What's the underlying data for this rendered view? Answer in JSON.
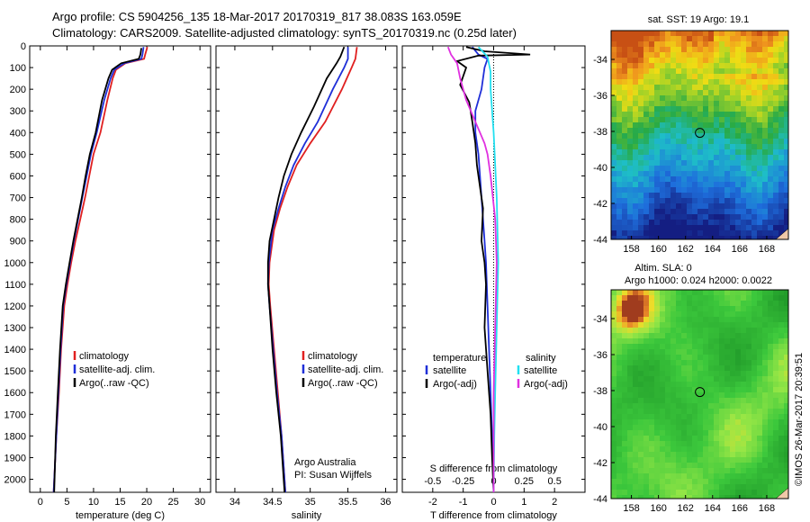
{
  "header": {
    "line1": "Argo profile: CS 5904256_135 18-Mar-2017 20170319_817 38.083S 163.059E",
    "line2": "Climatology: CARS2009. Satellite-adjusted climatology: synTS_20170319.nc (0.25d later)"
  },
  "side_text": "©IMOS 26-Mar-2017 20:39:51",
  "argo_credit": {
    "line1": "Argo Australia",
    "line2": "PI: Susan Wijffels"
  },
  "colors": {
    "climatology": "#e02020",
    "satellite": "#1f2fd8",
    "argo": "#000000",
    "sal_sat": "#22e0f0",
    "sal_argo": "#e030e0"
  },
  "chart_data": [
    {
      "type": "line",
      "id": "temperature",
      "xlabel": "temperature (deg C)",
      "xlim": [
        -2,
        32
      ],
      "xticks": [
        "0",
        "5",
        "10",
        "15",
        "20",
        "25",
        "30"
      ],
      "xtick_values": [
        0,
        5,
        10,
        15,
        20,
        25,
        30
      ],
      "ylim": [
        0,
        2060
      ],
      "yticks": [
        "0",
        "100",
        "200",
        "300",
        "400",
        "500",
        "600",
        "700",
        "800",
        "900",
        "1000",
        "1100",
        "1200",
        "1300",
        "1400",
        "1500",
        "1600",
        "1700",
        "1800",
        "1900",
        "2000"
      ],
      "ytick_values": [
        0,
        100,
        200,
        300,
        400,
        500,
        600,
        700,
        800,
        900,
        1000,
        1100,
        1200,
        1300,
        1400,
        1500,
        1600,
        1700,
        1800,
        1900,
        2000
      ],
      "legend": [
        "climatology",
        "satellite-adj. clim.",
        "Argo(..raw -QC)"
      ],
      "series": [
        {
          "name": "climatology",
          "color": "#e02020",
          "points": [
            [
              20.1,
              5
            ],
            [
              19.7,
              40
            ],
            [
              19.5,
              60
            ],
            [
              16,
              80
            ],
            [
              14.2,
              110
            ],
            [
              13.6,
              150
            ],
            [
              12.6,
              250
            ],
            [
              11.3,
              400
            ],
            [
              10,
              500
            ],
            [
              9.2,
              600
            ],
            [
              8.4,
              700
            ],
            [
              7.5,
              800
            ],
            [
              6.6,
              900
            ],
            [
              5.8,
              1000
            ],
            [
              5.1,
              1100
            ],
            [
              4.5,
              1200
            ],
            [
              3.9,
              1400
            ],
            [
              3.5,
              1600
            ],
            [
              3,
              1800
            ],
            [
              2.5,
              2060
            ]
          ]
        },
        {
          "name": "satellite-adj. clim.",
          "color": "#1f2fd8",
          "points": [
            [
              19.4,
              5
            ],
            [
              19.2,
              40
            ],
            [
              19,
              60
            ],
            [
              15.8,
              80
            ],
            [
              13.9,
              110
            ],
            [
              13.2,
              150
            ],
            [
              12,
              250
            ],
            [
              10.6,
              400
            ],
            [
              9.5,
              500
            ],
            [
              8.7,
              600
            ],
            [
              7.9,
              700
            ],
            [
              7.1,
              800
            ],
            [
              6.3,
              900
            ],
            [
              5.6,
              1000
            ],
            [
              4.9,
              1100
            ],
            [
              4.3,
              1200
            ],
            [
              3.8,
              1400
            ],
            [
              3.4,
              1600
            ],
            [
              3,
              1800
            ],
            [
              2.5,
              2060
            ]
          ]
        },
        {
          "name": "Argo(..raw -QC)",
          "color": "#000000",
          "points": [
            [
              19,
              10
            ],
            [
              18.8,
              40
            ],
            [
              18.5,
              60
            ],
            [
              15.2,
              80
            ],
            [
              13.5,
              110
            ],
            [
              12.8,
              150
            ],
            [
              11.6,
              250
            ],
            [
              10.4,
              400
            ],
            [
              9.3,
              500
            ],
            [
              8.5,
              600
            ],
            [
              7.8,
              700
            ],
            [
              7,
              800
            ],
            [
              6.2,
              900
            ],
            [
              5.5,
              1000
            ],
            [
              4.8,
              1100
            ],
            [
              4.2,
              1200
            ],
            [
              3.7,
              1400
            ],
            [
              3.3,
              1600
            ],
            [
              2.9,
              1800
            ],
            [
              2.6,
              2060
            ]
          ]
        }
      ]
    },
    {
      "type": "line",
      "id": "salinity",
      "xlabel": "salinity",
      "xlim": [
        33.75,
        36.15
      ],
      "xticks": [
        "34",
        "34.5",
        "35",
        "35.5",
        "36"
      ],
      "xtick_values": [
        34,
        34.5,
        35,
        35.5,
        36
      ],
      "ylim": [
        0,
        2060
      ],
      "legend": [
        "climatology",
        "satellite-adj. clim.",
        "Argo(..raw -QC)"
      ],
      "series": [
        {
          "name": "climatology",
          "color": "#e02020",
          "points": [
            [
              35.62,
              5
            ],
            [
              35.6,
              60
            ],
            [
              35.55,
              100
            ],
            [
              35.42,
              200
            ],
            [
              35.2,
              350
            ],
            [
              35,
              450
            ],
            [
              34.82,
              550
            ],
            [
              34.7,
              650
            ],
            [
              34.6,
              750
            ],
            [
              34.52,
              850
            ],
            [
              34.46,
              1000
            ],
            [
              34.45,
              1100
            ],
            [
              34.47,
              1200
            ],
            [
              34.52,
              1400
            ],
            [
              34.57,
              1600
            ],
            [
              34.62,
              1800
            ],
            [
              34.67,
              2060
            ]
          ]
        },
        {
          "name": "satellite-adj. clim.",
          "color": "#1f2fd8",
          "points": [
            [
              35.5,
              5
            ],
            [
              35.5,
              60
            ],
            [
              35.45,
              100
            ],
            [
              35.3,
              200
            ],
            [
              35.1,
              350
            ],
            [
              34.93,
              450
            ],
            [
              34.78,
              550
            ],
            [
              34.67,
              650
            ],
            [
              34.58,
              750
            ],
            [
              34.5,
              850
            ],
            [
              34.45,
              1000
            ],
            [
              34.44,
              1100
            ],
            [
              34.46,
              1200
            ],
            [
              34.51,
              1400
            ],
            [
              34.56,
              1600
            ],
            [
              34.62,
              1800
            ],
            [
              34.67,
              2060
            ]
          ]
        },
        {
          "name": "Argo(..raw -QC)",
          "color": "#000000",
          "points": [
            [
              35.45,
              5
            ],
            [
              35.4,
              50
            ],
            [
              35.35,
              80
            ],
            [
              35.22,
              150
            ],
            [
              35.05,
              280
            ],
            [
              34.88,
              400
            ],
            [
              34.75,
              500
            ],
            [
              34.65,
              600
            ],
            [
              34.58,
              700
            ],
            [
              34.52,
              800
            ],
            [
              34.46,
              900
            ],
            [
              34.44,
              1000
            ],
            [
              34.44,
              1100
            ],
            [
              34.46,
              1200
            ],
            [
              34.5,
              1400
            ],
            [
              34.55,
              1600
            ],
            [
              34.61,
              1800
            ],
            [
              34.66,
              2060
            ]
          ]
        }
      ]
    },
    {
      "type": "line",
      "id": "difference",
      "xlabel": "T difference from climatology",
      "xlim": [
        -3,
        3
      ],
      "xticks": [
        "-2",
        "-1",
        "0",
        "1",
        "2"
      ],
      "xtick_values": [
        -2,
        -1,
        0,
        1,
        2
      ],
      "top_label": "S difference from climatology",
      "top_ticks": [
        "-0.5",
        "-0.25",
        "0",
        "0.25",
        "0.5"
      ],
      "top_tick_values": [
        -0.5,
        -0.25,
        0,
        0.25,
        0.5
      ],
      "ylim": [
        0,
        2060
      ],
      "legend_left_title": "temperature",
      "legend_right_title": "salinity",
      "legend_left": [
        "satellite",
        "Argo(-adj)"
      ],
      "legend_right": [
        "satellite",
        "Argo(-adj)"
      ],
      "series": [
        {
          "name": "T satellite",
          "color": "#1f2fd8",
          "points": [
            [
              -0.7,
              5
            ],
            [
              -0.5,
              40
            ],
            [
              -0.2,
              60
            ],
            [
              -0.3,
              100
            ],
            [
              -0.4,
              200
            ],
            [
              -0.6,
              300
            ],
            [
              -0.6,
              400
            ],
            [
              -0.5,
              500
            ],
            [
              -0.4,
              700
            ],
            [
              -0.3,
              900
            ],
            [
              -0.25,
              1000
            ],
            [
              -0.2,
              1200
            ],
            [
              -0.15,
              1400
            ],
            [
              -0.1,
              1600
            ],
            [
              -0.05,
              1800
            ],
            [
              0,
              2060
            ]
          ]
        },
        {
          "name": "T Argo(-adj)",
          "color": "#000000",
          "points": [
            [
              -0.9,
              5
            ],
            [
              -0.3,
              25
            ],
            [
              1.2,
              40
            ],
            [
              -0.5,
              45
            ],
            [
              -1.2,
              70
            ],
            [
              -0.9,
              100
            ],
            [
              -1.1,
              180
            ],
            [
              -0.8,
              260
            ],
            [
              -0.7,
              350
            ],
            [
              -0.6,
              450
            ],
            [
              -0.55,
              550
            ],
            [
              -0.45,
              650
            ],
            [
              -0.35,
              750
            ],
            [
              -0.4,
              900
            ],
            [
              -0.3,
              1000
            ],
            [
              -0.25,
              1100
            ],
            [
              -0.3,
              1300
            ],
            [
              -0.2,
              1500
            ],
            [
              -0.1,
              1700
            ],
            [
              -0.05,
              1900
            ],
            [
              0,
              2060
            ]
          ]
        },
        {
          "name": "S satellite",
          "color": "#22e0f0",
          "points": [
            [
              -0.5,
              5
            ],
            [
              -0.2,
              50
            ],
            [
              -0.1,
              120
            ],
            [
              -0.1,
              200
            ],
            [
              0,
              400
            ],
            [
              0.1,
              700
            ],
            [
              0.15,
              1000
            ],
            [
              0.1,
              1300
            ],
            [
              0.05,
              1600
            ],
            [
              0.02,
              1800
            ],
            [
              0,
              2060
            ]
          ]
        },
        {
          "name": "S Argo(-adj)",
          "color": "#e030e0",
          "points": [
            [
              -1.5,
              5
            ],
            [
              -1.4,
              40
            ],
            [
              -1.2,
              80
            ],
            [
              -1.1,
              150
            ],
            [
              -0.9,
              250
            ],
            [
              -0.6,
              350
            ],
            [
              -0.3,
              450
            ],
            [
              -0.2,
              500
            ],
            [
              -0.1,
              600
            ],
            [
              0.05,
              800
            ],
            [
              0.1,
              1000
            ],
            [
              0.05,
              1300
            ],
            [
              0,
              1600
            ],
            [
              0,
              1800
            ],
            [
              0,
              2060
            ]
          ]
        }
      ]
    },
    {
      "type": "heatmap",
      "id": "sst_map",
      "title": "sat. SST: 19 Argo: 19.1",
      "xticks": [
        "158",
        "160",
        "162",
        "164",
        "166",
        "168"
      ],
      "xtick_values": [
        158,
        160,
        162,
        164,
        166,
        168
      ],
      "yticks": [
        "-34",
        "-36",
        "-38",
        "-40",
        "-42",
        "-44"
      ],
      "ytick_values": [
        -34,
        -36,
        -38,
        -40,
        -42,
        -44
      ],
      "xlim": [
        156.5,
        169.6
      ],
      "ylim": [
        -44,
        -32.4
      ],
      "marker": [
        163.06,
        -38.08
      ]
    },
    {
      "type": "heatmap",
      "id": "sla_map",
      "title": "Altim. SLA: 0",
      "subtitle": "Argo h1000: 0.024 h2000: 0.0022",
      "xticks": [
        "158",
        "160",
        "162",
        "164",
        "166",
        "168"
      ],
      "xtick_values": [
        158,
        160,
        162,
        164,
        166,
        168
      ],
      "yticks": [
        "-34",
        "-36",
        "-38",
        "-40",
        "-42",
        "-44"
      ],
      "ytick_values": [
        -34,
        -36,
        -38,
        -40,
        -42,
        -44
      ],
      "xlim": [
        156.5,
        169.6
      ],
      "ylim": [
        -44,
        -32.4
      ],
      "marker": [
        163.06,
        -38.08
      ]
    }
  ]
}
